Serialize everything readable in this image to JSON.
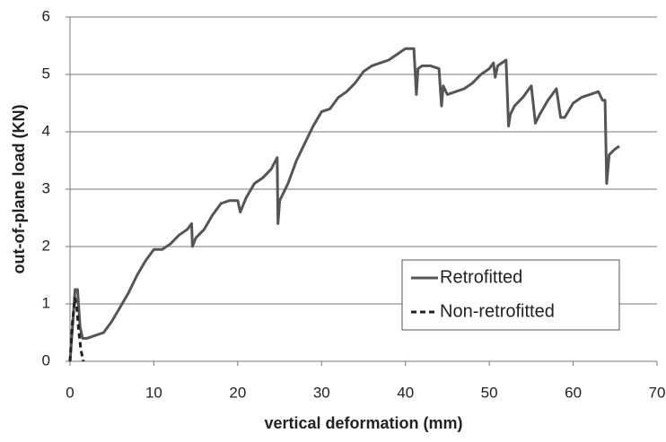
{
  "chart_data": {
    "type": "line",
    "xlabel": "vertical deformation (mm)",
    "ylabel": "out-of-plane load (KN)",
    "xlim": [
      0,
      70
    ],
    "xticks": [
      0,
      10,
      20,
      30,
      40,
      50,
      60,
      70
    ],
    "ylim": [
      0,
      6
    ],
    "yticks": [
      0,
      1,
      2,
      3,
      4,
      5,
      6
    ],
    "grid": true,
    "legend": "lower right",
    "series": [
      {
        "name": "Retrofitted",
        "color": "#555555",
        "dash": "solid",
        "x": [
          0,
          0.3,
          0.6,
          0.9,
          1.2,
          1.5,
          2,
          3,
          4,
          5,
          6,
          7,
          8,
          9,
          10,
          11,
          12,
          13,
          14,
          14.5,
          14.6,
          15,
          16,
          17,
          18,
          19,
          20,
          20.3,
          21,
          22,
          23,
          24,
          24.7,
          24.8,
          25,
          26,
          27,
          28,
          29,
          30,
          31,
          32,
          33,
          34,
          35,
          36,
          37,
          38,
          39,
          40,
          41,
          41.3,
          41.5,
          42,
          43,
          44,
          44.3,
          44.5,
          45,
          46,
          47,
          48,
          49,
          50,
          50.5,
          50.7,
          51,
          52,
          52.3,
          52.5,
          53,
          54,
          55,
          55.5,
          56,
          57,
          58,
          58.5,
          59,
          60,
          61,
          62,
          63,
          63.5,
          63.8,
          64,
          64.3,
          65,
          65.5
        ],
        "values": [
          0,
          0.6,
          1.25,
          1.25,
          0.6,
          0.4,
          0.4,
          0.45,
          0.5,
          0.7,
          0.95,
          1.2,
          1.5,
          1.75,
          1.95,
          1.95,
          2.05,
          2.2,
          2.3,
          2.4,
          2.0,
          2.15,
          2.3,
          2.55,
          2.75,
          2.8,
          2.8,
          2.6,
          2.85,
          3.1,
          3.2,
          3.35,
          3.55,
          2.4,
          2.8,
          3.1,
          3.5,
          3.8,
          4.1,
          4.35,
          4.4,
          4.6,
          4.7,
          4.85,
          5.05,
          5.15,
          5.2,
          5.25,
          5.35,
          5.45,
          5.45,
          4.65,
          5.1,
          5.15,
          5.15,
          5.1,
          4.45,
          4.8,
          4.65,
          4.7,
          4.75,
          4.85,
          5.0,
          5.1,
          5.2,
          4.95,
          5.15,
          5.25,
          4.1,
          4.3,
          4.45,
          4.6,
          4.8,
          4.15,
          4.3,
          4.55,
          4.75,
          4.25,
          4.25,
          4.5,
          4.6,
          4.65,
          4.7,
          4.55,
          4.55,
          3.1,
          3.6,
          3.7,
          3.75
        ]
      },
      {
        "name": "Non-retrofitted",
        "color": "#222222",
        "dash": "dashed",
        "x": [
          0,
          0.3,
          0.6,
          0.8,
          1.0,
          1.3,
          1.6
        ],
        "values": [
          0,
          0.7,
          1.1,
          0.95,
          0.6,
          0.2,
          0.0
        ]
      }
    ]
  }
}
